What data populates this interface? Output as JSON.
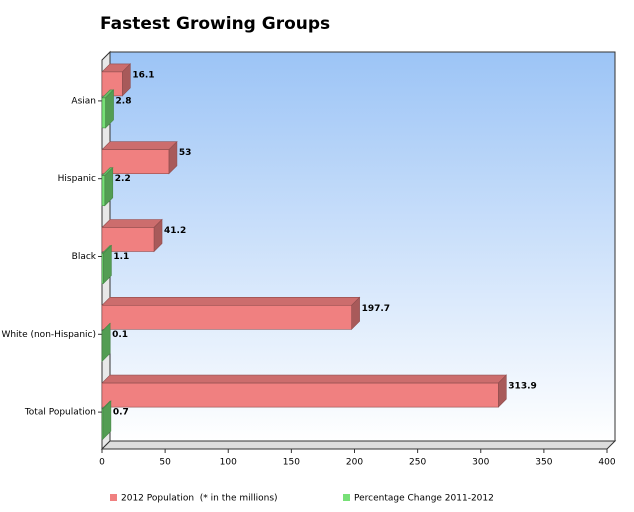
{
  "chart_data": {
    "type": "bar3d-horizontal",
    "title": "Fastest Growing Groups",
    "categories": [
      "Asian",
      "Hispanic",
      "Black",
      "White (non-Hispanic)",
      "Total Population"
    ],
    "series": [
      {
        "name": "2012 Population  (* in the millions)",
        "color": "#f08080",
        "values": [
          16.1,
          53,
          41.2,
          197.7,
          313.9
        ]
      },
      {
        "name": "Percentage Change 2011-2012",
        "color": "#77e077",
        "values": [
          2.8,
          2.2,
          1.1,
          0.1,
          0.7
        ]
      }
    ],
    "xlim": [
      0,
      400
    ],
    "xticks": [
      0,
      50,
      100,
      150,
      200,
      250,
      300,
      350,
      400
    ]
  }
}
